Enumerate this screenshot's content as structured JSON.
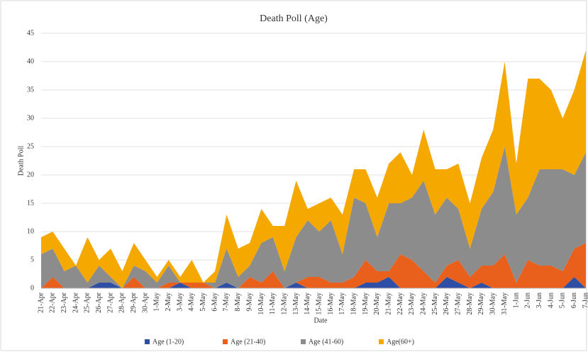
{
  "chart_data": {
    "type": "stacked_area",
    "title": "Death Poll (Age)",
    "x_label": "Date",
    "y_label": "Death Poll",
    "categories": [
      "21-Apr",
      "22-Apr",
      "23-Apr",
      "24-Apr",
      "25-Apr",
      "26-Apr",
      "27-Apr",
      "28-Apr",
      "29-Apr",
      "30-Apr",
      "1-May",
      "2-May",
      "3-May",
      "4-May",
      "5-May",
      "6-May",
      "7-May",
      "8-May",
      "9-May",
      "10-May",
      "11-May",
      "12-May",
      "13-May",
      "14-May",
      "15-May",
      "16-May",
      "17-May",
      "18-May",
      "19-May",
      "20-May",
      "21-May",
      "22-May",
      "23-May",
      "24-May",
      "25-May",
      "26-May",
      "27-May",
      "28-May",
      "29-May",
      "30-May",
      "31-May",
      "1-Jun",
      "2-Jun",
      "3-Jun",
      "4-Jun",
      "5-Jun",
      "6-Jun",
      "7-Jun"
    ],
    "series": [
      {
        "name": "Age (1-20)",
        "color": "#2e4fa3",
        "values": [
          0,
          0,
          0,
          0,
          0,
          1,
          1,
          0,
          0,
          0,
          0,
          0,
          1,
          0,
          0,
          0,
          1,
          0,
          0,
          0,
          0,
          0,
          1,
          0,
          0,
          0,
          0,
          0,
          1,
          1,
          2,
          0,
          0,
          0,
          0,
          2,
          1,
          0,
          1,
          0,
          0,
          0,
          0,
          0,
          0,
          0,
          2,
          0
        ]
      },
      {
        "name": "Age (21-40)",
        "color": "#e8601c",
        "values": [
          0,
          2,
          0,
          0,
          0,
          0,
          0,
          0,
          2,
          0,
          0,
          1,
          0,
          1,
          1,
          0,
          0,
          0,
          2,
          1,
          3,
          0,
          0,
          2,
          2,
          1,
          1,
          2,
          4,
          2,
          1,
          6,
          5,
          3,
          1,
          2,
          4,
          2,
          3,
          4,
          6,
          1,
          5,
          4,
          4,
          3,
          5,
          8
        ]
      },
      {
        "name": "Age (41-60)",
        "color": "#8c8c8c",
        "values": [
          6,
          5,
          3,
          4,
          1,
          3,
          1,
          0,
          2,
          3,
          1,
          3,
          0,
          0,
          0,
          1,
          6,
          2,
          2,
          7,
          6,
          3,
          8,
          10,
          8,
          11,
          5,
          14,
          10,
          6,
          12,
          9,
          11,
          16,
          12,
          12,
          9,
          5,
          10,
          13,
          19,
          12,
          11,
          17,
          17,
          18,
          13,
          16
        ]
      },
      {
        "name": "Age(60+)",
        "color": "#f5a800",
        "values": [
          3,
          3,
          4,
          0,
          8,
          1,
          5,
          3,
          4,
          2,
          1,
          1,
          1,
          4,
          0,
          2,
          6,
          5,
          4,
          6,
          2,
          8,
          10,
          2,
          5,
          4,
          7,
          5,
          6,
          7,
          7,
          9,
          4,
          9,
          8,
          5,
          8,
          8,
          9,
          11,
          15,
          9,
          21,
          16,
          14,
          9,
          15,
          18
        ]
      }
    ],
    "ylim": [
      0,
      45
    ],
    "yticks": [
      0,
      5,
      10,
      15,
      20,
      25,
      30,
      35,
      40,
      45
    ],
    "grid": true,
    "legend": "bottom"
  }
}
